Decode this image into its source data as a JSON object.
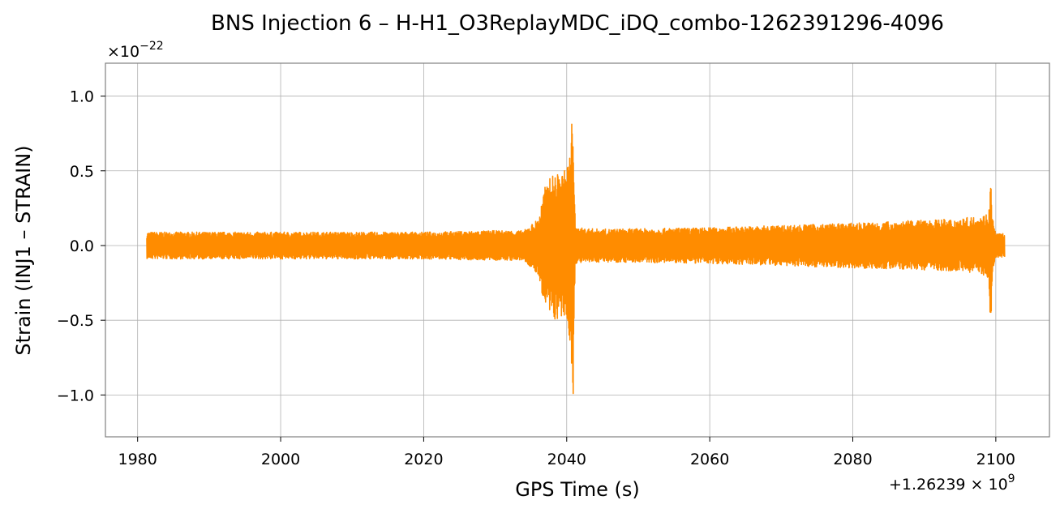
{
  "chart_data": {
    "type": "line",
    "title": "BNS Injection 6 – H-H1_O3ReplayMDC_iDQ_combo-1262391296-4096",
    "xlabel": "GPS Time (s)",
    "ylabel": "Strain (INJ1 – STRAIN)",
    "x_offset_label": "+1.26239 × 10",
    "x_offset_exponent": "9",
    "y_scale_label": "×10",
    "y_scale_exponent": "−22",
    "xlim": [
      1975.5,
      2107.5
    ],
    "ylim": [
      -1.28,
      1.22
    ],
    "grid": true,
    "line_color": "#ff8c00",
    "x_ticks": [
      1980,
      2000,
      2020,
      2040,
      2060,
      2080,
      2100
    ],
    "x_tick_labels": [
      "1980",
      "2000",
      "2020",
      "2040",
      "2060",
      "2080",
      "2100"
    ],
    "y_ticks": [
      -1.0,
      -0.5,
      0.0,
      0.5,
      1.0
    ],
    "y_tick_labels": [
      "−1.0",
      "−0.5",
      "0.0",
      "0.5",
      "1.0"
    ],
    "series": [
      {
        "x_range": [
          1981.3,
          2101.2
        ],
        "envelope": {
          "x": [
            1981.3,
            1990,
            2000,
            2010,
            2020,
            2030,
            2034,
            2036,
            2037,
            2038,
            2039,
            2040,
            2040.6,
            2040.9,
            2041.0,
            2041.2,
            2045,
            2060,
            2080,
            2095,
            2098,
            2099.0,
            2099.3,
            2099.5,
            2100,
            2101.2
          ],
          "upper": [
            0.09,
            0.09,
            0.09,
            0.09,
            0.09,
            0.1,
            0.1,
            0.18,
            0.4,
            0.48,
            0.48,
            0.52,
            0.68,
            1.11,
            0.6,
            0.12,
            0.11,
            0.12,
            0.15,
            0.18,
            0.2,
            0.22,
            0.46,
            0.2,
            0.08,
            0.08
          ],
          "lower": [
            -0.09,
            -0.09,
            -0.09,
            -0.09,
            -0.09,
            -0.1,
            -0.1,
            -0.2,
            -0.42,
            -0.5,
            -0.5,
            -0.5,
            -0.7,
            -1.17,
            -0.6,
            -0.12,
            -0.11,
            -0.12,
            -0.15,
            -0.17,
            -0.19,
            -0.22,
            -0.59,
            -0.2,
            -0.08,
            -0.08
          ]
        }
      }
    ]
  }
}
